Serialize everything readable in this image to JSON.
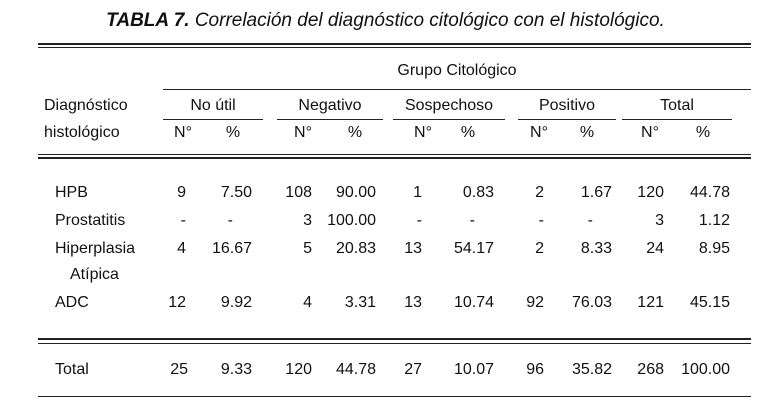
{
  "title": {
    "label": "TABLA 7.",
    "text": "Correlación del diagnóstico citológico con el histológico."
  },
  "header": {
    "group": "Grupo Citológico",
    "row_label_line1": "Diagnóstico",
    "row_label_line2": "histológico",
    "columns": [
      "No útil",
      "Negativo",
      "Sospechoso",
      "Positivo",
      "Total"
    ],
    "num": "N°",
    "pct": "%"
  },
  "rows": [
    {
      "label": "HPB",
      "label2": "",
      "cells": [
        "9",
        "7.50",
        "108",
        "90.00",
        "1",
        "0.83",
        "2",
        "1.67",
        "120",
        "44.78"
      ]
    },
    {
      "label": "Prostatitis",
      "label2": "",
      "cells": [
        "-",
        "-",
        "3",
        "100.00",
        "-",
        "-",
        "-",
        "-",
        "3",
        "1.12"
      ]
    },
    {
      "label": "Hiperplasia",
      "label2": "Atípica",
      "cells": [
        "4",
        "16.67",
        "5",
        "20.83",
        "13",
        "54.17",
        "2",
        "8.33",
        "24",
        "8.95"
      ]
    },
    {
      "label": "ADC",
      "label2": "",
      "cells": [
        "12",
        "9.92",
        "4",
        "3.31",
        "13",
        "10.74",
        "92",
        "76.03",
        "121",
        "45.15"
      ]
    }
  ],
  "total": {
    "label": "Total",
    "cells": [
      "25",
      "9.33",
      "120",
      "44.78",
      "27",
      "10.07",
      "96",
      "35.82",
      "268",
      "100.00"
    ]
  }
}
